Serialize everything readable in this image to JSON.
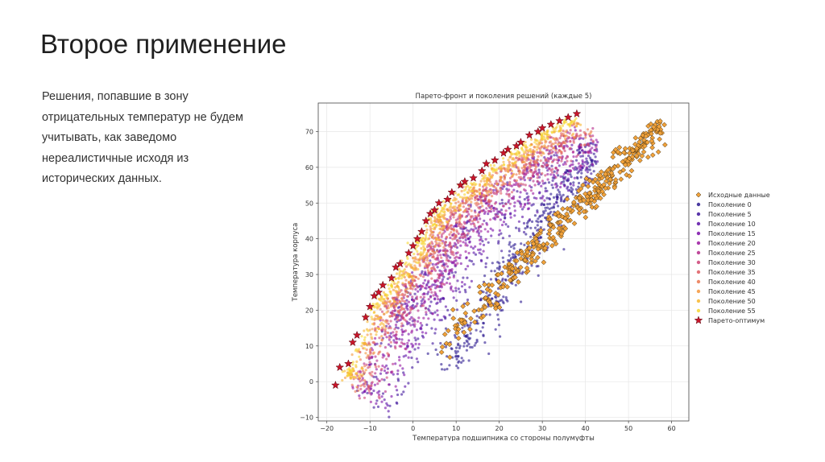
{
  "slide": {
    "title": "Второе применение",
    "text_lines": [
      "Решения, попавшие в зону",
      "отрицательных температур не будем",
      "учитывать, как заведомо",
      "нереалистичные исходя из",
      "исторических данных."
    ]
  },
  "colors": {
    "original": "#f2a23a",
    "pareto": "#c8152a",
    "generations": [
      "#2a178f",
      "#3d139b",
      "#5a0fa6",
      "#7a0da8",
      "#9a17a0",
      "#b52a8a",
      "#cc4276",
      "#de5c62",
      "#eb7850",
      "#f4963c",
      "#f8b62e",
      "#f6d52f"
    ]
  },
  "chart_data": {
    "type": "scatter",
    "title": "Парето-фронт и поколения решений (каждые 5)",
    "xlabel": "Температура подшипника со стороны полумуфты",
    "ylabel": "Температура корпуса",
    "xlim": [
      -22,
      64
    ],
    "ylim": [
      -11,
      78
    ],
    "xticks": [
      -20,
      -10,
      0,
      10,
      20,
      30,
      40,
      50,
      60
    ],
    "yticks": [
      -10,
      0,
      10,
      20,
      30,
      40,
      50,
      60,
      70
    ],
    "grid": true,
    "legend_position": "right",
    "legend": [
      "Исходные данные",
      "Поколение 0",
      "Поколение 5",
      "Поколение 10",
      "Поколение 15",
      "Поколение 20",
      "Поколение 25",
      "Поколение 30",
      "Поколение 35",
      "Поколение 40",
      "Поколение 45",
      "Поколение 50",
      "Поколение 55",
      "Парето-оптимум"
    ],
    "pareto_front": [
      [
        -18,
        -1
      ],
      [
        -17,
        4
      ],
      [
        -15,
        5
      ],
      [
        -14,
        11
      ],
      [
        -13,
        13
      ],
      [
        -11,
        18
      ],
      [
        -10,
        21
      ],
      [
        -9,
        24
      ],
      [
        -8,
        25
      ],
      [
        -7,
        27
      ],
      [
        -5,
        29
      ],
      [
        -4,
        32
      ],
      [
        -3,
        33
      ],
      [
        -1,
        36
      ],
      [
        0,
        38
      ],
      [
        1,
        40
      ],
      [
        2,
        42
      ],
      [
        3,
        45
      ],
      [
        4,
        47
      ],
      [
        5,
        48
      ],
      [
        6,
        50
      ],
      [
        8,
        51
      ],
      [
        9,
        53
      ],
      [
        11,
        55
      ],
      [
        12,
        56
      ],
      [
        14,
        57
      ],
      [
        16,
        59
      ],
      [
        17,
        61
      ],
      [
        19,
        62
      ],
      [
        21,
        64
      ],
      [
        22,
        65
      ],
      [
        24,
        66
      ],
      [
        25,
        67
      ],
      [
        27,
        69
      ],
      [
        29,
        70
      ],
      [
        30,
        71
      ],
      [
        32,
        72
      ],
      [
        34,
        73
      ],
      [
        36,
        74
      ],
      [
        38,
        75
      ]
    ],
    "original_data_envelope": {
      "x_range": [
        4,
        60
      ],
      "y_range": [
        4,
        73
      ],
      "trend": "y ≈ 1.2·x + 3"
    },
    "generation_clouds": {
      "gen0_center": [
        25,
        20
      ],
      "gen55_front": "along Pareto front from (-18,-1) to (38,75)"
    }
  }
}
